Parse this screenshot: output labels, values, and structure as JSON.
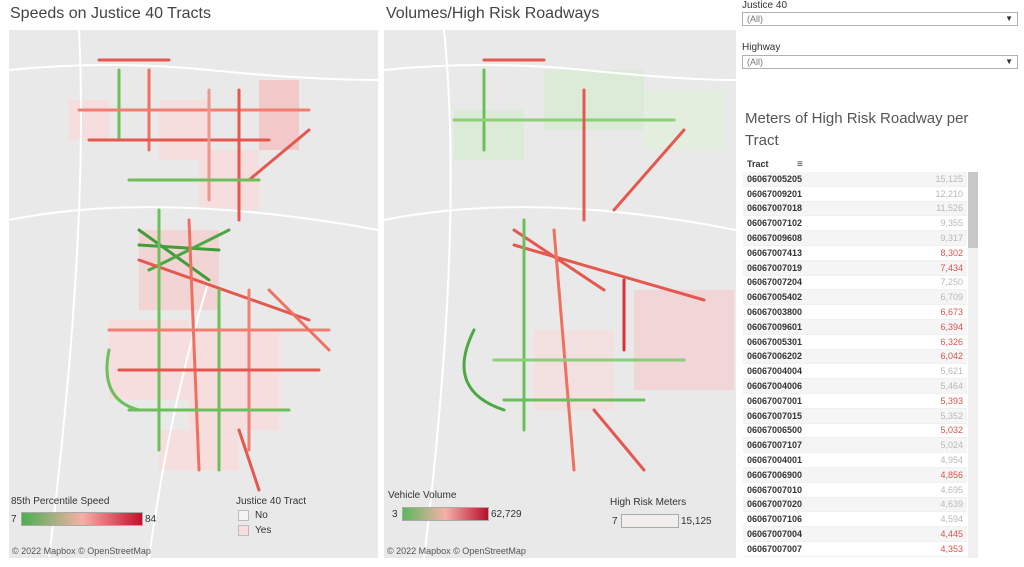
{
  "left_panel": {
    "title": "Speeds on Justice 40 Tracts",
    "attribution": "© 2022 Mapbox  © OpenStreetMap",
    "speed_legend": {
      "title": "85th Percentile Speed",
      "min": "7",
      "max": "84"
    },
    "tract_legend": {
      "title": "Justice 40 Tract",
      "items": [
        "No",
        "Yes"
      ]
    }
  },
  "right_panel": {
    "title": "Volumes/High Risk Roadways",
    "attribution": "© 2022 Mapbox  © OpenStreetMap",
    "volume_legend": {
      "title": "Vehicle Volume",
      "min": "3",
      "max": "62,729"
    },
    "risk_legend": {
      "title": "High Risk Meters",
      "min": "7",
      "max": "15,125"
    }
  },
  "filters": {
    "justice40": {
      "label": "Justice 40",
      "value": "(All)"
    },
    "highway": {
      "label": "Highway",
      "value": "(All)"
    }
  },
  "table": {
    "title": "Meters of High Risk Roadway per Tract",
    "column": "Tract",
    "rows": [
      {
        "tract": "06067005205",
        "value": "15,125",
        "red": false
      },
      {
        "tract": "06067009201",
        "value": "12,210",
        "red": false
      },
      {
        "tract": "06067007018",
        "value": "11,526",
        "red": false
      },
      {
        "tract": "06067007102",
        "value": "9,355",
        "red": false
      },
      {
        "tract": "06067009608",
        "value": "9,317",
        "red": false
      },
      {
        "tract": "06067007413",
        "value": "8,302",
        "red": true
      },
      {
        "tract": "06067007019",
        "value": "7,434",
        "red": true
      },
      {
        "tract": "06067007204",
        "value": "7,250",
        "red": false
      },
      {
        "tract": "06067005402",
        "value": "6,709",
        "red": false
      },
      {
        "tract": "06067003800",
        "value": "6,673",
        "red": true
      },
      {
        "tract": "06067009601",
        "value": "6,394",
        "red": true
      },
      {
        "tract": "06067005301",
        "value": "6,326",
        "red": true
      },
      {
        "tract": "06067006202",
        "value": "6,042",
        "red": true
      },
      {
        "tract": "06067004004",
        "value": "5,621",
        "red": false
      },
      {
        "tract": "06067004006",
        "value": "5,464",
        "red": false
      },
      {
        "tract": "06067007001",
        "value": "5,393",
        "red": true
      },
      {
        "tract": "06067007015",
        "value": "5,352",
        "red": false
      },
      {
        "tract": "06067006500",
        "value": "5,032",
        "red": true
      },
      {
        "tract": "06067007107",
        "value": "5,024",
        "red": false
      },
      {
        "tract": "06067004001",
        "value": "4,954",
        "red": false
      },
      {
        "tract": "06067006900",
        "value": "4,856",
        "red": true
      },
      {
        "tract": "06067007010",
        "value": "4,695",
        "red": false
      },
      {
        "tract": "06067007020",
        "value": "4,639",
        "red": false
      },
      {
        "tract": "06067007106",
        "value": "4,594",
        "red": false
      },
      {
        "tract": "06067007004",
        "value": "4,445",
        "red": true
      },
      {
        "tract": "06067007007",
        "value": "4,353",
        "red": true
      }
    ]
  },
  "colors": {
    "speed_low": "#4caf50",
    "speed_high": "#c0102a",
    "volume_low": "#5cb85c",
    "volume_high": "#b7102a",
    "tract_yes": "#f6dede",
    "tract_no": "#f4f4f4",
    "map_bg": "#e9e9e9"
  }
}
